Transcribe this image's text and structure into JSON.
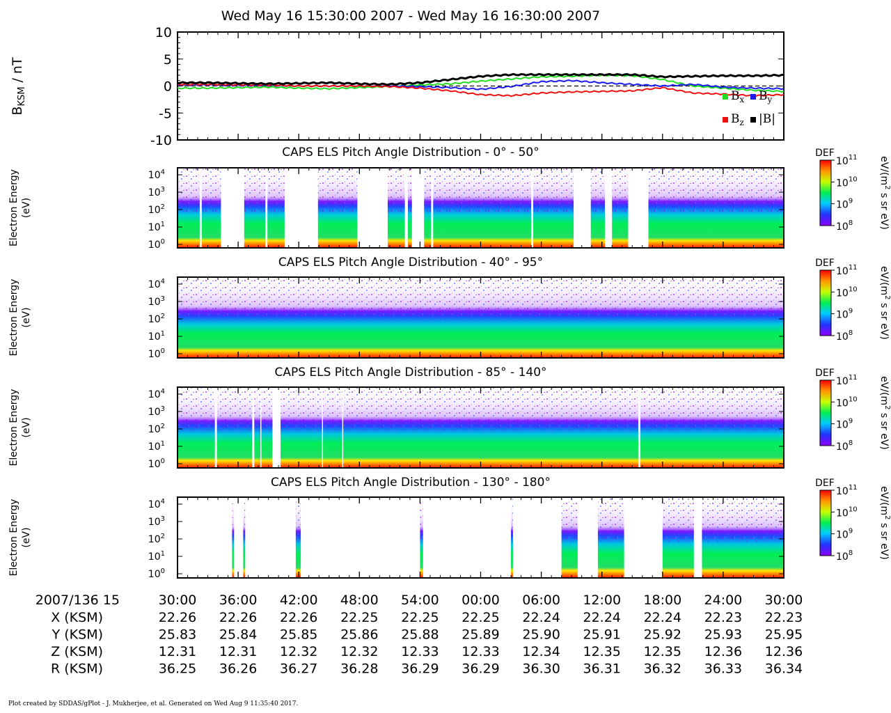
{
  "time_title": "Wed May 16 15:30:00 2007 - Wed May 16 16:30:00 2007",
  "footer": "Plot created by SDDAS/gPlot - J. Mukherjee, et al.  Generated on Wed Aug 9 11:35:40 2017.",
  "colors": {
    "bx": "#22dd22",
    "by": "#1a1aee",
    "bz": "#ee1111",
    "btot": "#000000",
    "colorbar": [
      "#8c00ff",
      "#2233ff",
      "#00ccff",
      "#00ee55",
      "#c8ff00",
      "#ff9900",
      "#ff0000"
    ]
  },
  "chart_data": [
    {
      "type": "line",
      "ylabel_main": "B",
      "ylabel_sub": "KSM",
      "ylabel_unit": " / nT",
      "ylim": [
        -10,
        10
      ],
      "yticks": [
        "10",
        "5",
        "0",
        "-5",
        "-10"
      ],
      "xlim_minutes": [
        0,
        60
      ],
      "legend": {
        "placement": "bottom-right",
        "items": [
          {
            "main": "B",
            "sub": "x"
          },
          {
            "main": "B",
            "sub": "y"
          },
          {
            "main": "B",
            "sub": "z"
          },
          {
            "main": "|B|",
            "sub": ""
          }
        ]
      },
      "series": [
        {
          "key": "bx",
          "x": [
            0,
            3,
            6,
            9,
            12,
            15,
            18,
            21,
            24,
            27,
            30,
            33,
            36,
            39,
            42,
            45,
            48,
            51,
            54,
            57,
            60
          ],
          "values": [
            -0.4,
            -0.4,
            -0.3,
            -0.2,
            -0.4,
            -0.5,
            -0.3,
            -0.1,
            0.2,
            0.4,
            0.9,
            1.3,
            1.7,
            1.8,
            2.0,
            1.9,
            1.2,
            0.0,
            -0.4,
            -0.8,
            -1.0
          ]
        },
        {
          "key": "by",
          "x": [
            0,
            3,
            6,
            9,
            12,
            15,
            18,
            21,
            24,
            27,
            30,
            33,
            36,
            39,
            42,
            45,
            48,
            51,
            54,
            57,
            60
          ],
          "values": [
            0.2,
            0.2,
            0.1,
            0.1,
            0.0,
            0.0,
            0.0,
            0.0,
            -0.1,
            -0.3,
            -0.6,
            -0.1,
            0.8,
            1.0,
            0.6,
            0.3,
            0.0,
            0.3,
            -0.2,
            -0.4,
            -0.5
          ]
        },
        {
          "key": "bz",
          "x": [
            0,
            3,
            6,
            9,
            12,
            15,
            18,
            21,
            24,
            27,
            30,
            33,
            36,
            39,
            42,
            45,
            48,
            51,
            54,
            57,
            60
          ],
          "values": [
            0.3,
            0.3,
            0.2,
            0.2,
            0.0,
            0.0,
            0.0,
            -0.1,
            -0.4,
            -0.9,
            -1.6,
            -1.8,
            -1.3,
            -1.1,
            -1.0,
            -0.9,
            -0.3,
            -1.3,
            -1.5,
            -1.8,
            -1.6
          ]
        },
        {
          "key": "btot",
          "x": [
            0,
            3,
            6,
            9,
            12,
            15,
            18,
            21,
            24,
            27,
            30,
            33,
            36,
            39,
            42,
            45,
            48,
            51,
            54,
            57,
            60
          ],
          "values": [
            0.6,
            0.6,
            0.5,
            0.4,
            0.5,
            0.6,
            0.4,
            0.3,
            0.6,
            1.2,
            1.8,
            2.1,
            2.1,
            2.1,
            2.1,
            2.1,
            1.7,
            1.8,
            1.9,
            1.9,
            2.0
          ]
        }
      ]
    },
    {
      "type": "heatmap",
      "title": "CAPS ELS Pitch Angle Distribution - 0° - 50°",
      "ylabel": "Electron Energy",
      "yunit": "(eV)",
      "yticks": [
        "10",
        "10",
        "10",
        "10",
        "10"
      ],
      "yexps": [
        "4",
        "3",
        "2",
        "1",
        "0"
      ],
      "data_gaps_minutes": [
        [
          2.2,
          2.4
        ],
        [
          4.3,
          6.6
        ],
        [
          8.7,
          8.9
        ],
        [
          10.6,
          13.9
        ],
        [
          17.8,
          20.8
        ],
        [
          22.5,
          22.8
        ],
        [
          23.2,
          24.4
        ],
        [
          25.1,
          25.3
        ],
        [
          35.0,
          35.2
        ],
        [
          39.2,
          40.9
        ],
        [
          42.3,
          43.0
        ],
        [
          44.6,
          46.6
        ]
      ],
      "colorbar": {
        "label": "DEF",
        "unit_main": "eV/(m",
        "unit_sup": "2",
        "unit_rest": " s sr eV)",
        "ticks": [
          "10",
          "10",
          "10",
          "10"
        ],
        "exps": [
          "11",
          "10",
          "9",
          "8"
        ]
      }
    },
    {
      "type": "heatmap",
      "title": "CAPS ELS Pitch Angle Distribution - 40° - 95°",
      "ylabel": "Electron Energy",
      "yunit": "(eV)",
      "yticks": [
        "10",
        "10",
        "10",
        "10",
        "10"
      ],
      "yexps": [
        "4",
        "3",
        "2",
        "1",
        "0"
      ],
      "data_gaps_minutes": [],
      "colorbar": {
        "label": "DEF",
        "unit_main": "eV/(m",
        "unit_sup": "2",
        "unit_rest": " s sr eV)",
        "ticks": [
          "10",
          "10",
          "10",
          "10"
        ],
        "exps": [
          "11",
          "10",
          "9",
          "8"
        ]
      }
    },
    {
      "type": "heatmap",
      "title": "CAPS ELS Pitch Angle Distribution - 85° - 140°",
      "ylabel": "Electron Energy",
      "yunit": "(eV)",
      "yticks": [
        "10",
        "10",
        "10",
        "10",
        "10"
      ],
      "yexps": [
        "4",
        "3",
        "2",
        "1",
        "0"
      ],
      "data_gaps_minutes": [
        [
          3.7,
          3.9
        ],
        [
          7.4,
          7.6
        ],
        [
          8.2,
          8.3
        ],
        [
          9.4,
          10.2
        ],
        [
          14.3,
          14.4
        ],
        [
          16.3,
          16.4
        ],
        [
          45.6,
          45.8
        ]
      ],
      "colorbar": {
        "label": "DEF",
        "unit_main": "eV/(m",
        "unit_sup": "2",
        "unit_rest": " s sr eV)",
        "ticks": [
          "10",
          "10",
          "10",
          "10"
        ],
        "exps": [
          "11",
          "10",
          "9",
          "8"
        ]
      }
    },
    {
      "type": "heatmap",
      "title": "CAPS ELS Pitch Angle Distribution - 130° - 180°",
      "ylabel": "Electron Energy",
      "yunit": "(eV)",
      "yticks": [
        "10",
        "10",
        "10",
        "10",
        "10"
      ],
      "yexps": [
        "4",
        "3",
        "2",
        "1",
        "0"
      ],
      "data_gaps_minutes": [
        [
          0,
          5.4
        ],
        [
          5.6,
          6.5
        ],
        [
          6.7,
          11.7
        ],
        [
          12.2,
          24.0
        ],
        [
          24.3,
          33.0
        ],
        [
          33.2,
          38.0
        ],
        [
          39.6,
          41.6
        ],
        [
          44.2,
          48.0
        ],
        [
          51.1,
          51.9
        ]
      ],
      "colorbar": {
        "label": "DEF",
        "unit_main": "eV/(m",
        "unit_sup": "2",
        "unit_rest": " s sr eV)",
        "ticks": [
          "10",
          "10",
          "10",
          "10"
        ],
        "exps": [
          "11",
          "10",
          "9",
          "8"
        ]
      }
    }
  ],
  "time_axis": {
    "labels": [
      "30:00",
      "36:00",
      "42:00",
      "48:00",
      "54:00",
      "00:00",
      "06:00",
      "12:00",
      "18:00",
      "24:00",
      "30:00"
    ],
    "minutes": [
      0,
      6,
      12,
      18,
      24,
      30,
      36,
      42,
      48,
      54,
      60
    ],
    "minor_minutes": [
      1,
      2,
      3,
      4,
      5,
      7,
      8,
      9,
      10,
      11,
      13,
      14,
      15,
      16,
      17,
      19,
      20,
      21,
      22,
      23,
      25,
      26,
      27,
      28,
      29,
      31,
      32,
      33,
      34,
      35,
      37,
      38,
      39,
      40,
      41,
      43,
      44,
      45,
      46,
      47,
      49,
      50,
      51,
      52,
      53,
      55,
      56,
      57,
      58,
      59
    ]
  },
  "ephemeris": {
    "header": "2007/136 15",
    "rows": [
      {
        "label": "X (KSM)",
        "values": [
          "22.26",
          "22.26",
          "22.26",
          "22.25",
          "22.25",
          "22.25",
          "22.24",
          "22.24",
          "22.24",
          "22.23",
          "22.23"
        ]
      },
      {
        "label": "Y (KSM)",
        "values": [
          "25.83",
          "25.84",
          "25.85",
          "25.86",
          "25.88",
          "25.89",
          "25.90",
          "25.91",
          "25.92",
          "25.93",
          "25.95"
        ]
      },
      {
        "label": "Z (KSM)",
        "values": [
          "12.31",
          "12.31",
          "12.32",
          "12.32",
          "12.33",
          "12.33",
          "12.34",
          "12.35",
          "12.35",
          "12.36",
          "12.36"
        ]
      },
      {
        "label": "R (KSM)",
        "values": [
          "36.25",
          "36.26",
          "36.27",
          "36.28",
          "36.29",
          "36.29",
          "36.30",
          "36.31",
          "36.32",
          "36.33",
          "36.34"
        ]
      }
    ]
  }
}
